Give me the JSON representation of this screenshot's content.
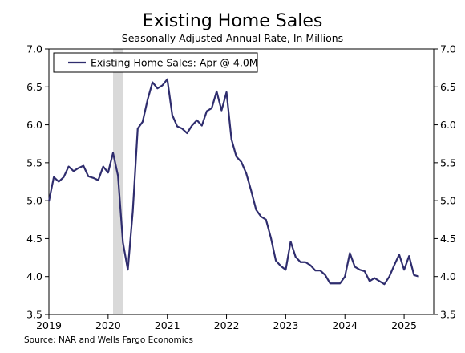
{
  "colors": {
    "line": "#2f2d6e",
    "recession": "#d9d9d9",
    "axis": "#000000"
  },
  "chart_data": {
    "type": "line",
    "title": "Existing Home Sales",
    "subtitle": "Seasonally Adjusted Annual Rate, In Millions",
    "source": "Source: NAR and Wells Fargo Economics",
    "legend": {
      "label": "Existing Home Sales: Apr @ 4.0M",
      "position": "top-left"
    },
    "ylim": [
      3.5,
      7.0
    ],
    "yticks": [
      "3.5",
      "4.0",
      "4.5",
      "5.0",
      "5.5",
      "6.0",
      "6.5",
      "7.0"
    ],
    "xticks": [
      "2019",
      "2020",
      "2021",
      "2022",
      "2023",
      "2024",
      "2025"
    ],
    "shaded_periods": [
      {
        "start": "2020-02",
        "end": "2020-04"
      }
    ],
    "series": [
      {
        "name": "Existing Home Sales",
        "points": [
          [
            "2019-01",
            4.99
          ],
          [
            "2019-02",
            5.31
          ],
          [
            "2019-03",
            5.25
          ],
          [
            "2019-04",
            5.31
          ],
          [
            "2019-05",
            5.45
          ],
          [
            "2019-06",
            5.39
          ],
          [
            "2019-07",
            5.43
          ],
          [
            "2019-08",
            5.46
          ],
          [
            "2019-09",
            5.32
          ],
          [
            "2019-10",
            5.3
          ],
          [
            "2019-11",
            5.27
          ],
          [
            "2019-12",
            5.45
          ],
          [
            "2020-01",
            5.37
          ],
          [
            "2020-02",
            5.63
          ],
          [
            "2020-03",
            5.33
          ],
          [
            "2020-04",
            4.45
          ],
          [
            "2020-05",
            4.09
          ],
          [
            "2020-06",
            4.86
          ],
          [
            "2020-07",
            5.95
          ],
          [
            "2020-08",
            6.04
          ],
          [
            "2020-09",
            6.33
          ],
          [
            "2020-10",
            6.56
          ],
          [
            "2020-11",
            6.48
          ],
          [
            "2020-12",
            6.52
          ],
          [
            "2021-01",
            6.6
          ],
          [
            "2021-02",
            6.13
          ],
          [
            "2021-03",
            5.98
          ],
          [
            "2021-04",
            5.95
          ],
          [
            "2021-05",
            5.89
          ],
          [
            "2021-06",
            5.99
          ],
          [
            "2021-07",
            6.06
          ],
          [
            "2021-08",
            5.99
          ],
          [
            "2021-09",
            6.18
          ],
          [
            "2021-10",
            6.22
          ],
          [
            "2021-11",
            6.44
          ],
          [
            "2021-12",
            6.19
          ],
          [
            "2022-01",
            6.43
          ],
          [
            "2022-02",
            5.81
          ],
          [
            "2022-03",
            5.58
          ],
          [
            "2022-04",
            5.51
          ],
          [
            "2022-05",
            5.36
          ],
          [
            "2022-06",
            5.13
          ],
          [
            "2022-07",
            4.88
          ],
          [
            "2022-08",
            4.79
          ],
          [
            "2022-09",
            4.75
          ],
          [
            "2022-10",
            4.51
          ],
          [
            "2022-11",
            4.21
          ],
          [
            "2022-12",
            4.14
          ],
          [
            "2023-01",
            4.09
          ],
          [
            "2023-02",
            4.46
          ],
          [
            "2023-03",
            4.26
          ],
          [
            "2023-04",
            4.19
          ],
          [
            "2023-05",
            4.19
          ],
          [
            "2023-06",
            4.15
          ],
          [
            "2023-07",
            4.08
          ],
          [
            "2023-08",
            4.08
          ],
          [
            "2023-09",
            4.02
          ],
          [
            "2023-10",
            3.91
          ],
          [
            "2023-11",
            3.91
          ],
          [
            "2023-12",
            3.91
          ],
          [
            "2024-01",
            4.0
          ],
          [
            "2024-02",
            4.31
          ],
          [
            "2024-03",
            4.13
          ],
          [
            "2024-04",
            4.09
          ],
          [
            "2024-05",
            4.07
          ],
          [
            "2024-06",
            3.94
          ],
          [
            "2024-07",
            3.98
          ],
          [
            "2024-08",
            3.94
          ],
          [
            "2024-09",
            3.9
          ],
          [
            "2024-10",
            4.0
          ],
          [
            "2024-11",
            4.15
          ],
          [
            "2024-12",
            4.29
          ],
          [
            "2025-01",
            4.09
          ],
          [
            "2025-02",
            4.27
          ],
          [
            "2025-03",
            4.02
          ],
          [
            "2025-04",
            4.0
          ]
        ]
      }
    ]
  }
}
